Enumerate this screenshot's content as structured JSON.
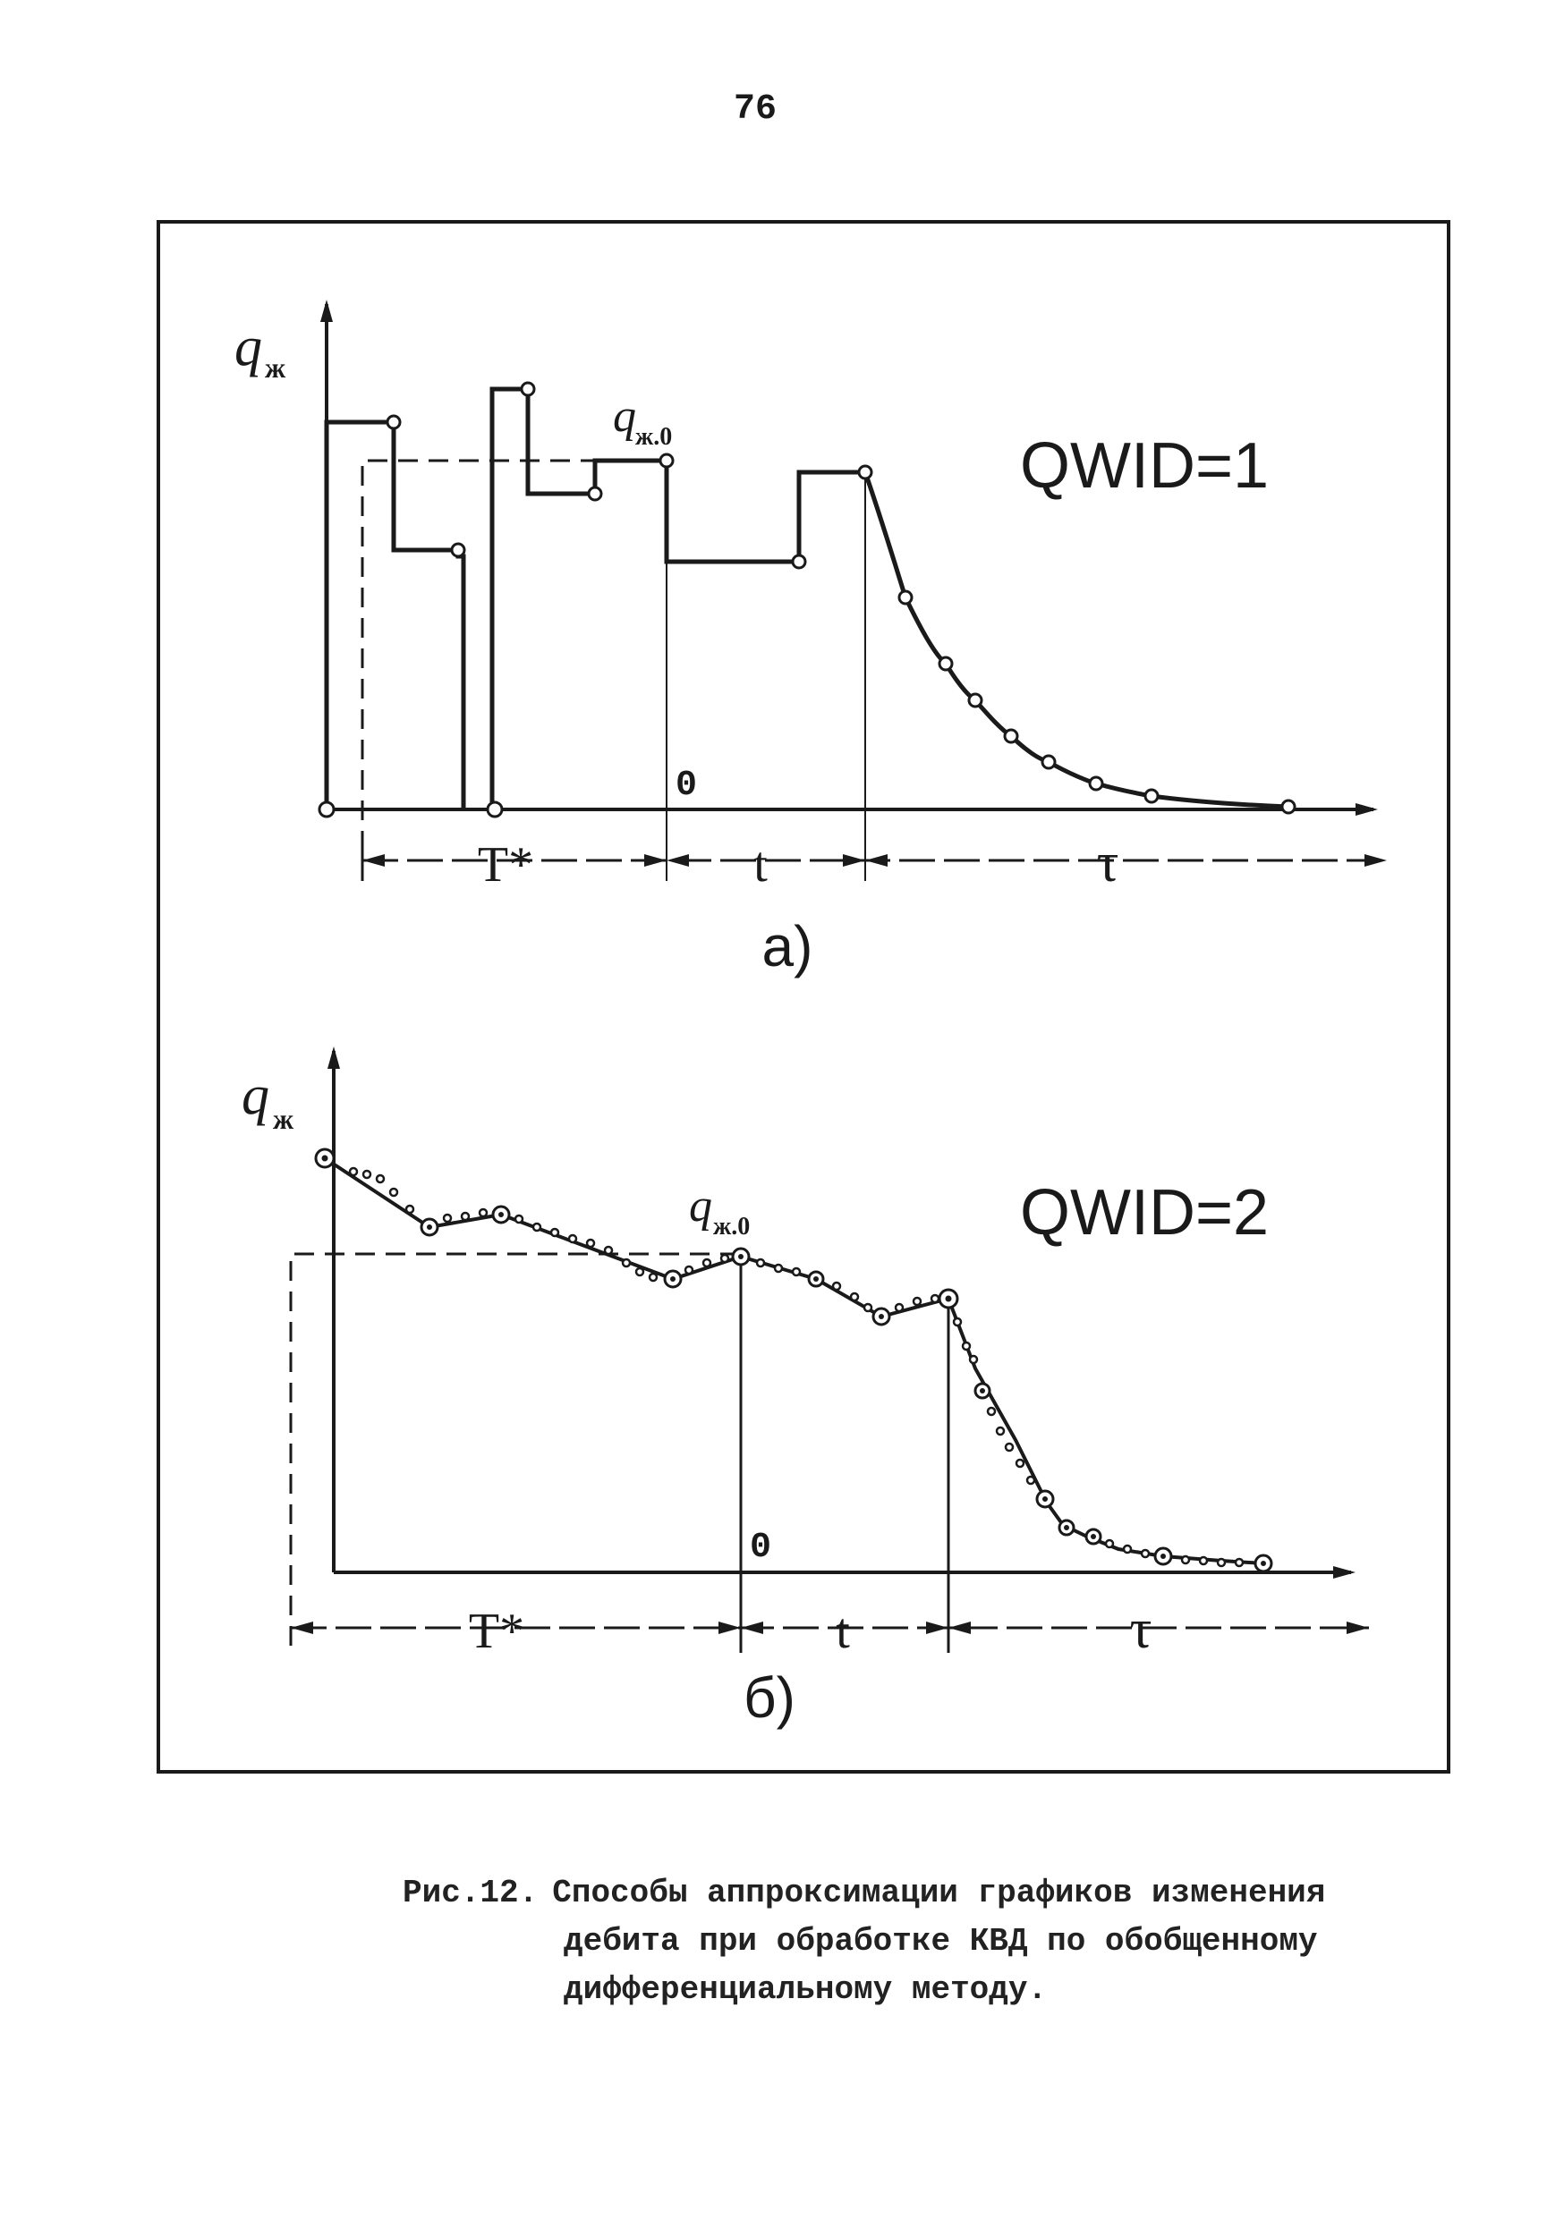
{
  "page_number": "76",
  "panel_a": {
    "y_axis_label": "q",
    "y_axis_subscript": "ж",
    "marker_label": "q",
    "marker_subscript": "ж.0",
    "zero_label": "0",
    "mode_label": "QWID=1",
    "interval_labels": [
      "T*",
      "t",
      "τ"
    ],
    "panel_label": "а)"
  },
  "panel_b": {
    "y_axis_label": "q",
    "y_axis_subscript": "ж",
    "marker_label": "q",
    "marker_subscript": "ж.0",
    "zero_label": "0",
    "mode_label": "QWID=2",
    "interval_labels": [
      "T*",
      "t",
      "τ"
    ],
    "panel_label": "б)"
  },
  "caption": {
    "label": "Рис.12.",
    "line1": "Способы аппроксимации графиков изменения",
    "line2": "дебита при обработке КВД по обобщенному",
    "line3": "дифференциальному методу."
  }
}
